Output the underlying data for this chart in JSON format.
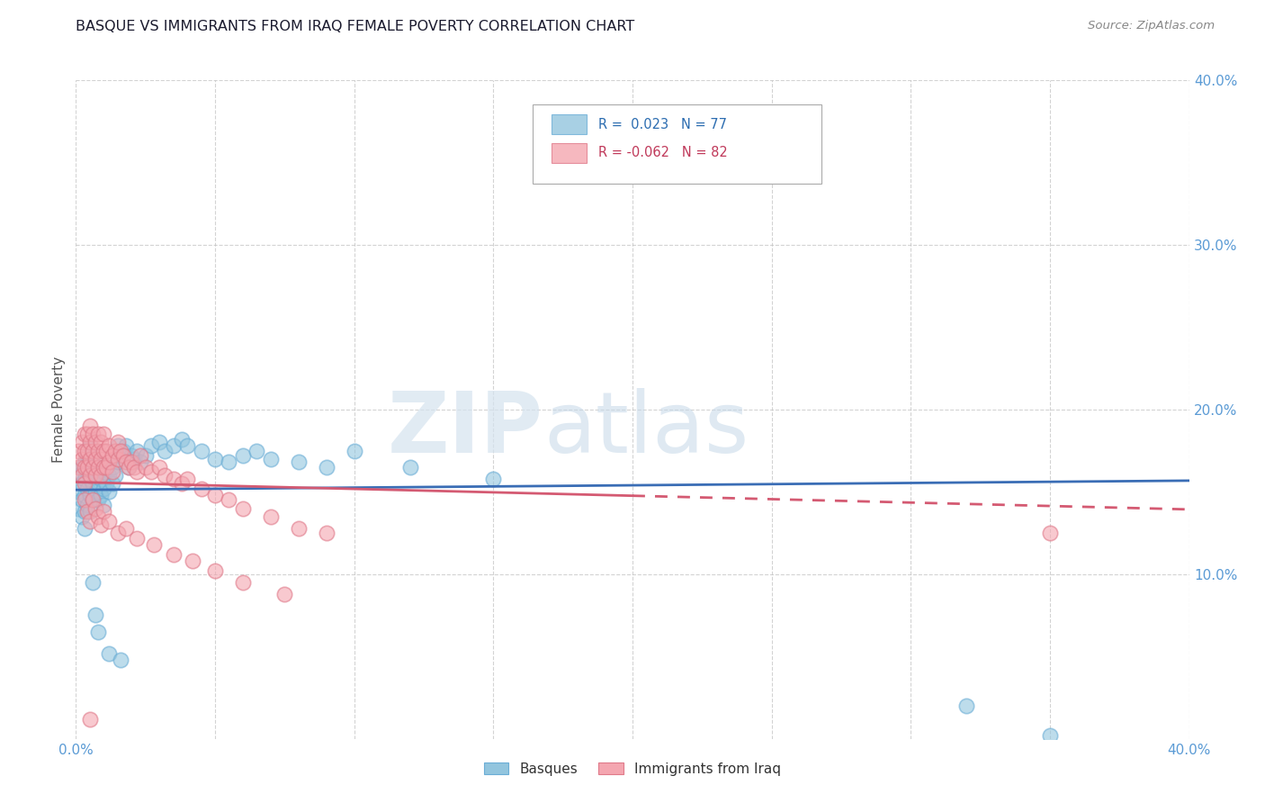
{
  "title": "BASQUE VS IMMIGRANTS FROM IRAQ FEMALE POVERTY CORRELATION CHART",
  "source": "Source: ZipAtlas.com",
  "ylabel_label": "Female Poverty",
  "xlim": [
    0.0,
    0.4
  ],
  "ylim": [
    0.0,
    0.4
  ],
  "blue_R": 0.023,
  "blue_N": 77,
  "pink_R": -0.062,
  "pink_N": 82,
  "blue_color": "#92c5de",
  "pink_color": "#f4a6b0",
  "blue_edge_color": "#6baed6",
  "pink_edge_color": "#e07a8a",
  "blue_line_color": "#3a6db5",
  "pink_line_color": "#d45a72",
  "legend_label_blue": "Basques",
  "legend_label_pink": "Immigrants from Iraq",
  "blue_x": [
    0.001,
    0.001,
    0.001,
    0.002,
    0.002,
    0.002,
    0.002,
    0.003,
    0.003,
    0.003,
    0.003,
    0.003,
    0.004,
    0.004,
    0.004,
    0.004,
    0.005,
    0.005,
    0.005,
    0.005,
    0.005,
    0.006,
    0.006,
    0.006,
    0.007,
    0.007,
    0.007,
    0.008,
    0.008,
    0.008,
    0.009,
    0.009,
    0.01,
    0.01,
    0.01,
    0.011,
    0.011,
    0.012,
    0.012,
    0.013,
    0.013,
    0.014,
    0.015,
    0.015,
    0.016,
    0.017,
    0.018,
    0.019,
    0.02,
    0.021,
    0.022,
    0.023,
    0.025,
    0.027,
    0.03,
    0.032,
    0.035,
    0.038,
    0.04,
    0.045,
    0.05,
    0.055,
    0.06,
    0.065,
    0.07,
    0.08,
    0.09,
    0.1,
    0.12,
    0.15,
    0.006,
    0.007,
    0.008,
    0.012,
    0.016,
    0.32,
    0.35
  ],
  "blue_y": [
    0.15,
    0.14,
    0.16,
    0.155,
    0.145,
    0.135,
    0.165,
    0.148,
    0.158,
    0.138,
    0.168,
    0.128,
    0.152,
    0.162,
    0.142,
    0.172,
    0.148,
    0.158,
    0.138,
    0.168,
    0.178,
    0.145,
    0.155,
    0.165,
    0.15,
    0.16,
    0.17,
    0.145,
    0.155,
    0.165,
    0.148,
    0.158,
    0.152,
    0.162,
    0.142,
    0.155,
    0.165,
    0.15,
    0.16,
    0.155,
    0.165,
    0.16,
    0.168,
    0.178,
    0.172,
    0.175,
    0.178,
    0.165,
    0.172,
    0.17,
    0.175,
    0.168,
    0.172,
    0.178,
    0.18,
    0.175,
    0.178,
    0.182,
    0.178,
    0.175,
    0.17,
    0.168,
    0.172,
    0.175,
    0.17,
    0.168,
    0.165,
    0.175,
    0.165,
    0.158,
    0.095,
    0.075,
    0.065,
    0.052,
    0.048,
    0.02,
    0.002
  ],
  "pink_x": [
    0.001,
    0.001,
    0.002,
    0.002,
    0.002,
    0.003,
    0.003,
    0.003,
    0.003,
    0.004,
    0.004,
    0.004,
    0.005,
    0.005,
    0.005,
    0.005,
    0.006,
    0.006,
    0.006,
    0.007,
    0.007,
    0.007,
    0.008,
    0.008,
    0.008,
    0.009,
    0.009,
    0.009,
    0.01,
    0.01,
    0.01,
    0.011,
    0.011,
    0.012,
    0.012,
    0.013,
    0.013,
    0.014,
    0.015,
    0.015,
    0.016,
    0.017,
    0.018,
    0.019,
    0.02,
    0.021,
    0.022,
    0.023,
    0.025,
    0.027,
    0.03,
    0.032,
    0.035,
    0.038,
    0.04,
    0.045,
    0.05,
    0.055,
    0.06,
    0.07,
    0.08,
    0.09,
    0.003,
    0.004,
    0.005,
    0.006,
    0.007,
    0.008,
    0.009,
    0.01,
    0.012,
    0.015,
    0.018,
    0.022,
    0.028,
    0.035,
    0.042,
    0.05,
    0.06,
    0.075,
    0.35,
    0.005
  ],
  "pink_y": [
    0.165,
    0.175,
    0.17,
    0.18,
    0.16,
    0.175,
    0.165,
    0.185,
    0.155,
    0.175,
    0.165,
    0.185,
    0.17,
    0.18,
    0.16,
    0.19,
    0.165,
    0.175,
    0.185,
    0.16,
    0.17,
    0.18,
    0.165,
    0.175,
    0.185,
    0.16,
    0.17,
    0.18,
    0.165,
    0.175,
    0.185,
    0.165,
    0.175,
    0.168,
    0.178,
    0.172,
    0.162,
    0.175,
    0.18,
    0.17,
    0.175,
    0.172,
    0.168,
    0.165,
    0.168,
    0.165,
    0.162,
    0.172,
    0.165,
    0.162,
    0.165,
    0.16,
    0.158,
    0.155,
    0.158,
    0.152,
    0.148,
    0.145,
    0.14,
    0.135,
    0.128,
    0.125,
    0.145,
    0.138,
    0.132,
    0.145,
    0.14,
    0.135,
    0.13,
    0.138,
    0.132,
    0.125,
    0.128,
    0.122,
    0.118,
    0.112,
    0.108,
    0.102,
    0.095,
    0.088,
    0.125,
    0.012
  ]
}
